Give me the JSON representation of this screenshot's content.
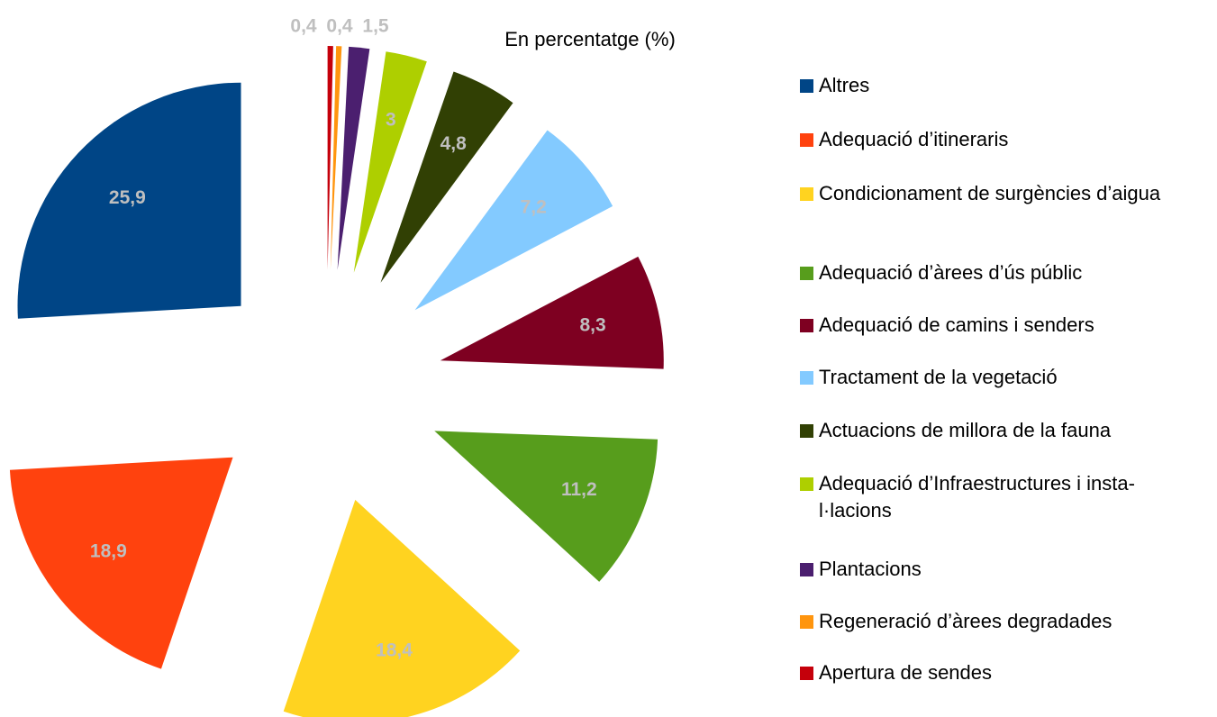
{
  "chart_data": {
    "type": "pie",
    "title": "En percentatge (%)",
    "categories": [
      "Altres",
      "Adequació d’itineraris",
      "Condicionament de surgències d’aigua",
      "Adequació d’àrees d’ús públic",
      "Adequació de camins i senders",
      "Tractament de la vegetació",
      "Actuacions de millora de la fauna",
      "Adequació d’Infraestructures i insta-l·lacions",
      "Plantacions",
      "Regeneració d’àrees degradades",
      "Apertura de sendes"
    ],
    "values": [
      25.9,
      18.9,
      18.4,
      11.2,
      8.3,
      7.2,
      4.8,
      3,
      1.5,
      0.4,
      0.4
    ],
    "value_labels": [
      "25,9",
      "18,9",
      "18,4",
      "11,2",
      "8,3",
      "7,2",
      "4,8",
      "3",
      "1,5",
      "0,4",
      "0,4"
    ],
    "colors": [
      "#004586",
      "#ff420e",
      "#ffd320",
      "#579d1c",
      "#7e0021",
      "#83caff",
      "#314004",
      "#aecf00",
      "#4b1f6f",
      "#ff950e",
      "#c5000b"
    ],
    "legend": "right"
  }
}
